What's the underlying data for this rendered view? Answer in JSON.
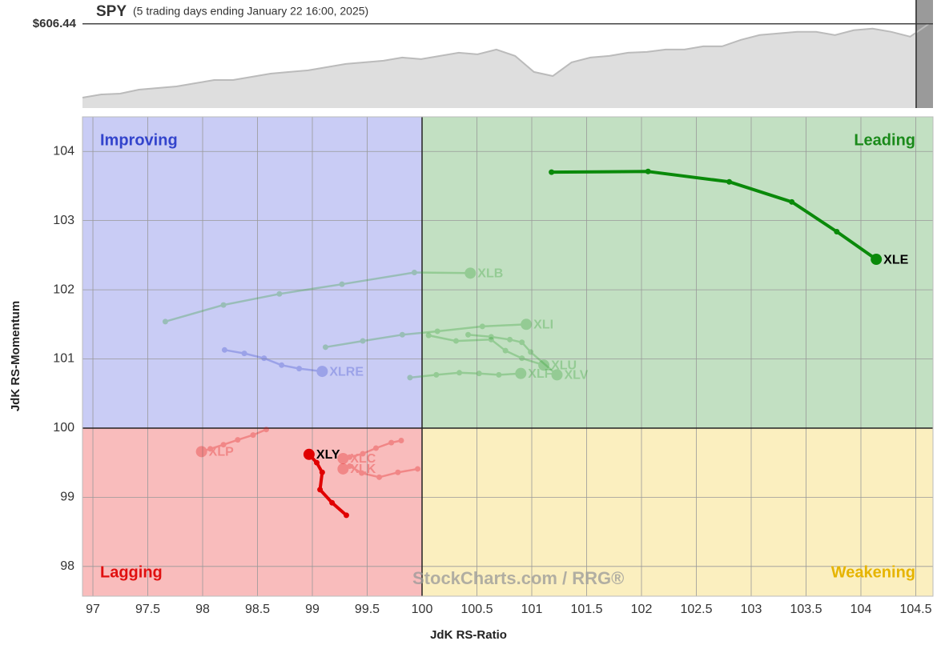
{
  "chart_data": {
    "type": "rrg",
    "symbol": "SPY",
    "subtitle": "(5 trading days ending January 22 16:00, 2025)",
    "price": {
      "values": [
        486.8,
        492.0,
        493.3,
        499.8,
        502.4,
        505.0,
        510.2,
        515.4,
        515.4,
        520.6,
        525.8,
        528.4,
        531.0,
        536.2,
        541.4,
        544.0,
        546.6,
        551.8,
        549.2,
        554.4,
        559.6,
        557.0,
        564.8,
        554.4,
        528.4,
        521.9,
        544.0,
        551.8,
        554.4,
        559.6,
        560.9,
        564.8,
        564.8,
        570.0,
        570.0,
        580.4,
        588.2,
        590.8,
        593.4,
        593.4,
        588.2,
        596.0,
        598.6,
        593.4,
        585.6,
        606.44
      ],
      "ylim": [
        470,
        645
      ],
      "last": {
        "value": 606.44,
        "label": "$606.44"
      }
    },
    "x_label": "JdK RS-Ratio",
    "y_label": "JdK RS-Momentum",
    "xlim": [
      96.905,
      104.657
    ],
    "ylim": [
      97.57,
      104.5
    ],
    "xticks": [
      97,
      97.5,
      98,
      98.5,
      99,
      99.5,
      100,
      100.5,
      101,
      101.5,
      102,
      102.5,
      103,
      103.5,
      104,
      104.5
    ],
    "yticks": [
      98,
      99,
      100,
      101,
      102,
      103,
      104
    ],
    "center": [
      100,
      100
    ],
    "grid": true,
    "quadrants": [
      {
        "name": "Improving",
        "corner": "top-left",
        "fill": "#c9ccf5",
        "color": "#3344cc"
      },
      {
        "name": "Leading",
        "corner": "top-right",
        "fill": "#c2e0c2",
        "color": "#1a8a1a"
      },
      {
        "name": "Lagging",
        "corner": "bottom-left",
        "fill": "#f9bcbc",
        "color": "#e01010"
      },
      {
        "name": "Weakening",
        "corner": "bottom-right",
        "fill": "#fbefbf",
        "color": "#e6b400"
      }
    ],
    "watermark": "StockCharts.com / RRG®",
    "series": [
      {
        "name": "XLB",
        "color": "#2e9e2e",
        "faded": true,
        "x": [
          97.66,
          98.19,
          98.7,
          99.27,
          99.93,
          100.44
        ],
        "y": [
          101.54,
          101.78,
          101.94,
          102.08,
          102.25,
          102.24
        ]
      },
      {
        "name": "XLI",
        "color": "#2e9e2e",
        "faded": true,
        "x": [
          99.12,
          99.46,
          99.82,
          100.14,
          100.55,
          100.95
        ],
        "y": [
          101.17,
          101.26,
          101.35,
          101.4,
          101.47,
          101.5
        ]
      },
      {
        "name": "XLU",
        "color": "#2e9e2e",
        "faded": true,
        "x": [
          100.06,
          100.31,
          100.63,
          100.76,
          100.91,
          101.11
        ],
        "y": [
          101.34,
          101.26,
          101.28,
          101.12,
          101.01,
          100.91
        ]
      },
      {
        "name": "XLV",
        "color": "#2e9e2e",
        "faded": true,
        "x": [
          100.42,
          100.63,
          100.8,
          100.91,
          100.99,
          101.23
        ],
        "y": [
          101.35,
          101.32,
          101.28,
          101.24,
          101.1,
          100.77
        ]
      },
      {
        "name": "XLF",
        "color": "#2e9e2e",
        "faded": true,
        "x": [
          99.89,
          100.13,
          100.34,
          100.52,
          100.7,
          100.9
        ],
        "y": [
          100.73,
          100.77,
          100.8,
          100.79,
          100.77,
          100.79
        ]
      },
      {
        "name": "XLRE",
        "color": "#3344cc",
        "faded": true,
        "x": [
          98.2,
          98.38,
          98.56,
          98.72,
          98.88,
          99.09
        ],
        "y": [
          101.13,
          101.08,
          101.01,
          100.91,
          100.86,
          100.82
        ]
      },
      {
        "name": "XLP",
        "color": "#e01010",
        "faded": true,
        "x": [
          98.58,
          98.46,
          98.32,
          98.19,
          98.07,
          97.99
        ],
        "y": [
          99.98,
          99.9,
          99.83,
          99.76,
          99.7,
          99.66
        ]
      },
      {
        "name": "XLC",
        "color": "#e01010",
        "faded": true,
        "x": [
          99.81,
          99.72,
          99.58,
          99.46,
          99.34,
          99.28
        ],
        "y": [
          99.82,
          99.79,
          99.71,
          99.63,
          99.58,
          99.56
        ]
      },
      {
        "name": "XLK",
        "color": "#e01010",
        "faded": true,
        "x": [
          99.96,
          99.78,
          99.61,
          99.45,
          99.34,
          99.28
        ],
        "y": [
          99.41,
          99.36,
          99.29,
          99.35,
          99.45,
          99.41
        ]
      },
      {
        "name": "XLE",
        "color": "#0a8a0a",
        "faded": false,
        "x": [
          101.18,
          102.06,
          102.8,
          103.37,
          103.78,
          104.14
        ],
        "y": [
          103.7,
          103.71,
          103.56,
          103.27,
          102.84,
          102.44
        ]
      },
      {
        "name": "XLY",
        "color": "#e00000",
        "faded": false,
        "x": [
          99.31,
          99.18,
          99.07,
          99.09,
          99.04,
          98.97
        ],
        "y": [
          98.74,
          98.92,
          99.11,
          99.36,
          99.5,
          99.62
        ]
      }
    ]
  }
}
